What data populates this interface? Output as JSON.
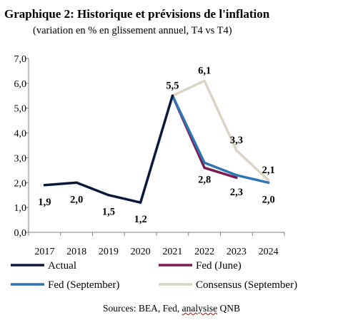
{
  "header": {
    "title": "Graphique 2: Historique  et prévisions  de l'inflation",
    "subtitle": "(variation en % en glissement annuel, T4 vs T4)"
  },
  "footer": {
    "source_prefix": "Sources: BEA, Fed, ",
    "source_underlined": "analysise",
    "source_suffix": " QNB"
  },
  "chart_data": {
    "type": "line",
    "x": [
      "2017",
      "2018",
      "2019",
      "2020",
      "2021",
      "2022",
      "2023",
      "2024"
    ],
    "ylim": [
      0,
      7
    ],
    "yticks": [
      "0,0",
      "1,0",
      "2,0",
      "3,0",
      "4,0",
      "5,0",
      "6,0",
      "7,0"
    ],
    "grid": false,
    "legend_position": "bottom",
    "series": [
      {
        "name": "Actual",
        "color": "#0b1a3a",
        "values": [
          1.9,
          2.0,
          1.5,
          1.2,
          5.5,
          null,
          null,
          null
        ]
      },
      {
        "name": "Fed (June)",
        "color": "#7b1c52",
        "values": [
          null,
          null,
          null,
          null,
          5.5,
          2.6,
          2.2,
          null
        ]
      },
      {
        "name": "Fed (September)",
        "color": "#2e75b6",
        "values": [
          null,
          null,
          null,
          null,
          5.5,
          2.8,
          2.3,
          2.0
        ]
      },
      {
        "name": "Consensus (September)",
        "color": "#d9d4c4",
        "values": [
          null,
          null,
          null,
          null,
          5.5,
          6.1,
          3.3,
          2.1
        ]
      }
    ],
    "data_labels": [
      {
        "text": "1,9",
        "x": "2017",
        "value": 1.9,
        "pos": "below"
      },
      {
        "text": "2,0",
        "x": "2018",
        "value": 2.0,
        "pos": "below"
      },
      {
        "text": "1,5",
        "x": "2019",
        "value": 1.5,
        "pos": "below"
      },
      {
        "text": "1,2",
        "x": "2020",
        "value": 1.2,
        "pos": "below"
      },
      {
        "text": "5,5",
        "x": "2021",
        "value": 5.5,
        "pos": "above"
      },
      {
        "text": "6,1",
        "x": "2022",
        "value": 6.1,
        "pos": "above"
      },
      {
        "text": "2,8",
        "x": "2022",
        "value": 2.8,
        "pos": "below"
      },
      {
        "text": "3,3",
        "x": "2023",
        "value": 3.3,
        "pos": "above"
      },
      {
        "text": "2,3",
        "x": "2023",
        "value": 2.3,
        "pos": "below"
      },
      {
        "text": "2,1",
        "x": "2024",
        "value": 2.1,
        "pos": "above"
      },
      {
        "text": "2,0",
        "x": "2024",
        "value": 2.0,
        "pos": "below"
      }
    ]
  }
}
